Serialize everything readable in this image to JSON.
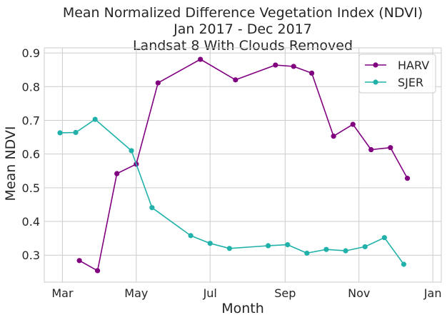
{
  "chart_data": {
    "type": "line",
    "title_lines": [
      "Mean Normalized Difference Vegetation Index (NDVI)",
      "Jan 2017 - Dec 2017",
      "Landsat 8 With Clouds Removed"
    ],
    "xlabel": "Month",
    "ylabel": "Mean NDVI",
    "x_tick_labels": [
      "Mar",
      "May",
      "Jul",
      "Sep",
      "Nov",
      "Jan"
    ],
    "x_tick_dates": [
      "2017-03-01",
      "2017-05-01",
      "2017-07-01",
      "2017-09-01",
      "2017-11-01",
      "2018-01-01"
    ],
    "xlim": [
      "2017-02-14",
      "2018-01-08"
    ],
    "y_ticks": [
      0.3,
      0.4,
      0.5,
      0.6,
      0.7,
      0.8,
      0.9
    ],
    "ylim": [
      0.22,
      0.915
    ],
    "grid": true,
    "legend_position": "top-right",
    "series": [
      {
        "name": "HARV",
        "color": "#800080",
        "marker": "circle",
        "points": [
          {
            "x": "2017-03-15",
            "y": 0.284
          },
          {
            "x": "2017-03-30",
            "y": 0.254
          },
          {
            "x": "2017-04-15",
            "y": 0.542
          },
          {
            "x": "2017-05-01",
            "y": 0.57
          },
          {
            "x": "2017-05-19",
            "y": 0.811
          },
          {
            "x": "2017-06-23",
            "y": 0.881
          },
          {
            "x": "2017-07-22",
            "y": 0.82
          },
          {
            "x": "2017-08-24",
            "y": 0.864
          },
          {
            "x": "2017-09-08",
            "y": 0.86
          },
          {
            "x": "2017-09-23",
            "y": 0.84
          },
          {
            "x": "2017-10-11",
            "y": 0.653
          },
          {
            "x": "2017-10-27",
            "y": 0.688
          },
          {
            "x": "2017-11-11",
            "y": 0.613
          },
          {
            "x": "2017-11-27",
            "y": 0.619
          },
          {
            "x": "2017-12-11",
            "y": 0.528
          }
        ]
      },
      {
        "name": "SJER",
        "color": "#20B2AA",
        "marker": "circle",
        "points": [
          {
            "x": "2017-02-27",
            "y": 0.663
          },
          {
            "x": "2017-03-12",
            "y": 0.664
          },
          {
            "x": "2017-03-28",
            "y": 0.703
          },
          {
            "x": "2017-04-27",
            "y": 0.61
          },
          {
            "x": "2017-05-14",
            "y": 0.441
          },
          {
            "x": "2017-06-15",
            "y": 0.358
          },
          {
            "x": "2017-07-01",
            "y": 0.335
          },
          {
            "x": "2017-07-17",
            "y": 0.32
          },
          {
            "x": "2017-08-18",
            "y": 0.328
          },
          {
            "x": "2017-09-03",
            "y": 0.331
          },
          {
            "x": "2017-09-19",
            "y": 0.306
          },
          {
            "x": "2017-10-05",
            "y": 0.317
          },
          {
            "x": "2017-10-21",
            "y": 0.313
          },
          {
            "x": "2017-11-06",
            "y": 0.325
          },
          {
            "x": "2017-11-22",
            "y": 0.352
          },
          {
            "x": "2017-12-08",
            "y": 0.273
          }
        ]
      }
    ]
  }
}
